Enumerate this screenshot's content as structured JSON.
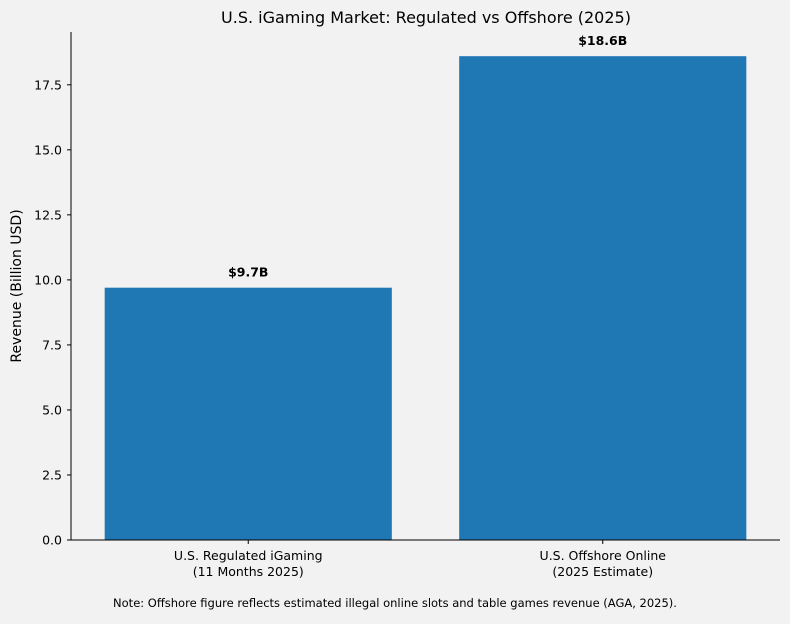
{
  "colors": {
    "background": "#f2f2f2",
    "bar": "#1f77b4",
    "axis": "#000000"
  },
  "chart_data": {
    "type": "bar",
    "title": "U.S. iGaming Market: Regulated vs Offshore (2025)",
    "xlabel": "",
    "ylabel": "Revenue (Billion USD)",
    "categories": [
      [
        "U.S. Regulated iGaming",
        "(11 Months 2025)"
      ],
      [
        "U.S. Offshore Online",
        "(2025 Estimate)"
      ]
    ],
    "values": [
      9.7,
      18.6
    ],
    "data_labels": [
      "$9.7B",
      "$18.6B"
    ],
    "ylim": [
      0,
      19.53
    ],
    "yticks": [
      0.0,
      2.5,
      5.0,
      7.5,
      10.0,
      12.5,
      15.0,
      17.5
    ],
    "ytick_labels": [
      "0.0",
      "2.5",
      "5.0",
      "7.5",
      "10.0",
      "12.5",
      "15.0",
      "17.5"
    ],
    "grid": false,
    "legend": "none",
    "spines": "left-bottom"
  },
  "note": "Note: Offshore figure reflects estimated illegal online slots and table games revenue (AGA, 2025)."
}
